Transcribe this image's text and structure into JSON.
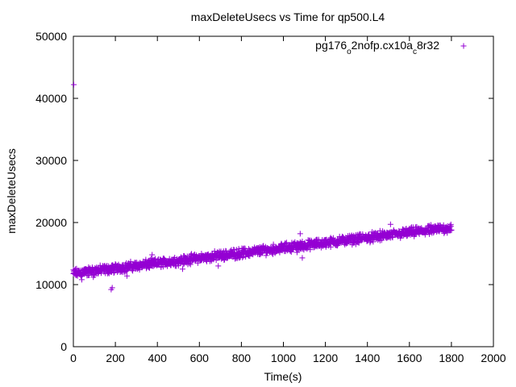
{
  "chart_data": {
    "type": "scatter",
    "title": "maxDeleteUsecs vs Time for qp500.L4",
    "xlabel": "Time(s)",
    "ylabel": "maxDeleteUsecs",
    "xlim": [
      0,
      2000
    ],
    "ylim": [
      0,
      50000
    ],
    "xticks": [
      0,
      200,
      400,
      600,
      800,
      1000,
      1200,
      1400,
      1600,
      1800,
      2000
    ],
    "yticks": [
      0,
      10000,
      20000,
      30000,
      40000,
      50000
    ],
    "xtick_labels": [
      "0",
      "200",
      "400",
      "600",
      "800",
      "1000",
      "1200",
      "1400",
      "1600",
      "1800",
      "2000"
    ],
    "ytick_labels": [
      "0",
      "10000",
      "20000",
      "30000",
      "40000",
      "50000"
    ],
    "grid": false,
    "legend_placement": "top-right",
    "series": [
      {
        "name_parts": [
          "pg176",
          "o",
          "2nofp.cx10a",
          "c",
          "8r32"
        ],
        "color": "#9400d3",
        "marker": "plus",
        "trend": {
          "x_start": 0,
          "x_end": 1800,
          "y_start": 11800,
          "y_end": 19200
        },
        "band_width": 900,
        "outliers": [
          {
            "x": 2,
            "y": 42200
          },
          {
            "x": 180,
            "y": 9200
          },
          {
            "x": 185,
            "y": 9500
          },
          {
            "x": 375,
            "y": 14800
          },
          {
            "x": 1080,
            "y": 18200
          },
          {
            "x": 1510,
            "y": 19700
          },
          {
            "x": 1090,
            "y": 14300
          },
          {
            "x": 1065,
            "y": 15200
          },
          {
            "x": 820,
            "y": 14500
          },
          {
            "x": 40,
            "y": 10800
          },
          {
            "x": 95,
            "y": 11200
          },
          {
            "x": 255,
            "y": 11400
          },
          {
            "x": 520,
            "y": 12500
          },
          {
            "x": 690,
            "y": 13000
          }
        ]
      }
    ]
  }
}
